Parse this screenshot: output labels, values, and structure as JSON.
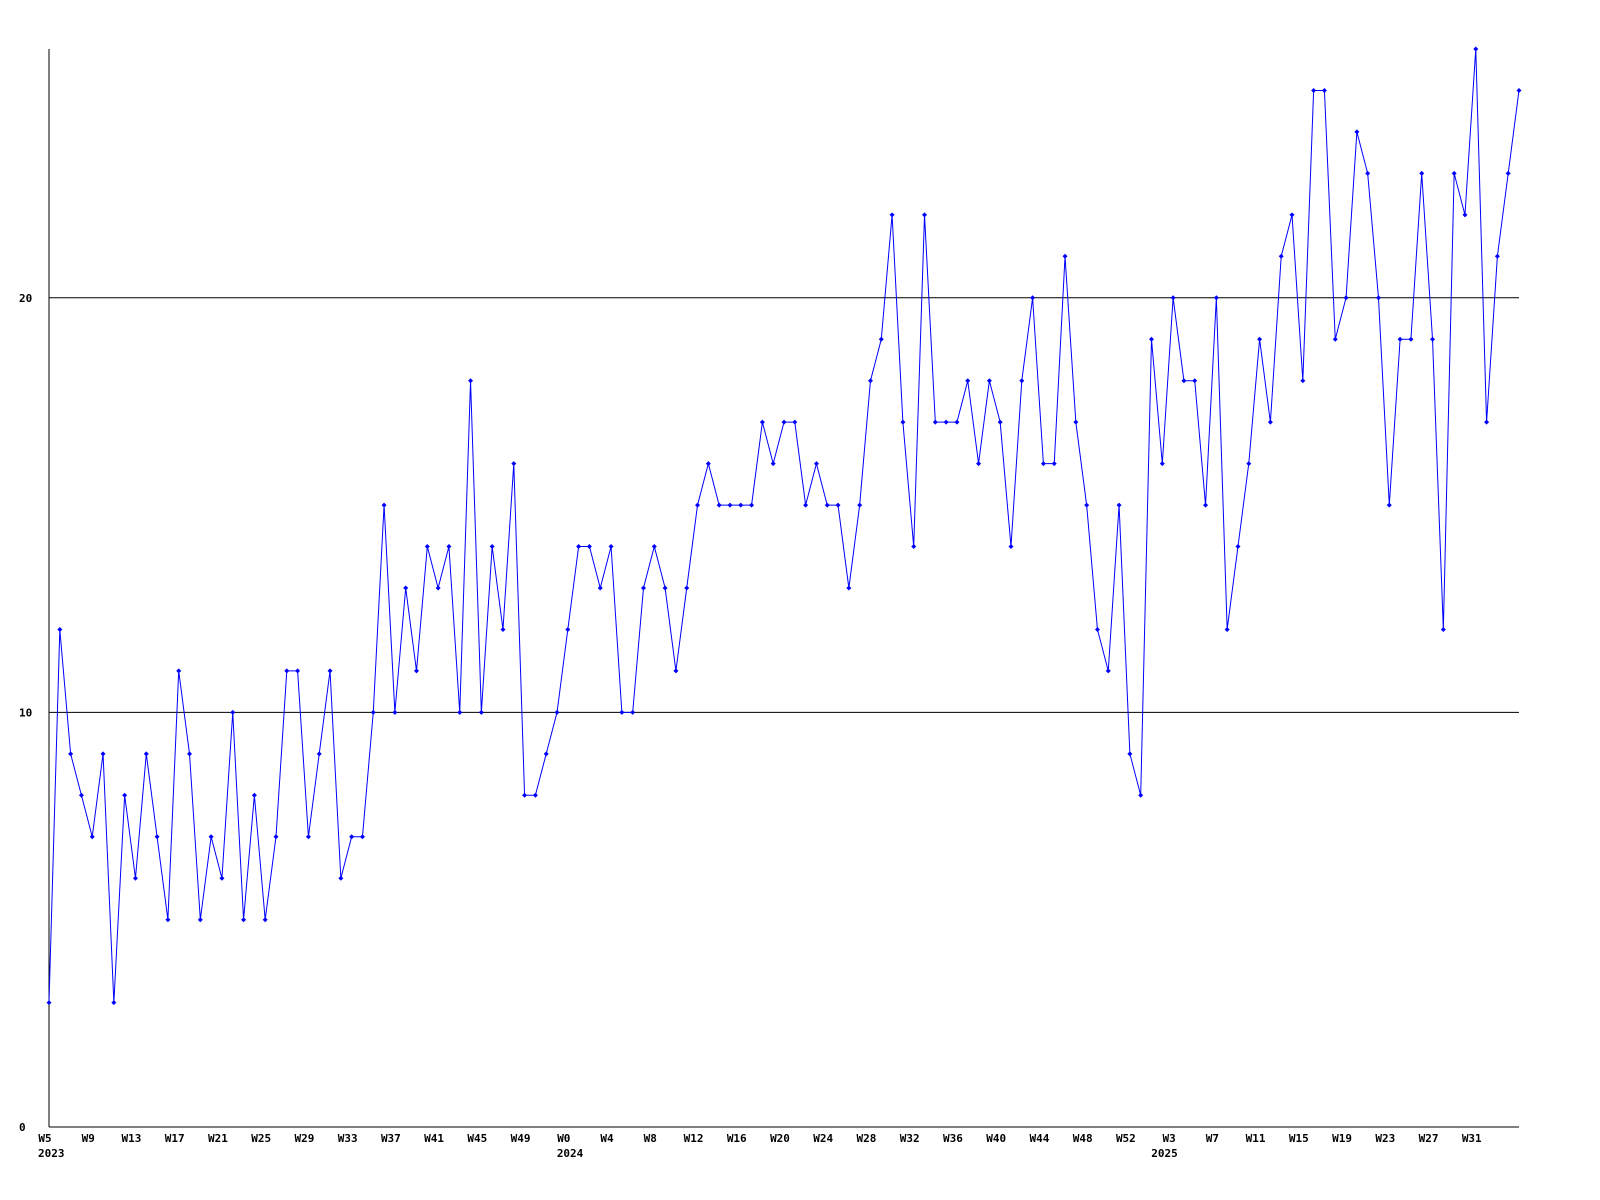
{
  "chart_data": {
    "type": "line",
    "categories": [
      "W5",
      null,
      null,
      null,
      "W9",
      null,
      null,
      null,
      "W13",
      null,
      null,
      null,
      "W17",
      null,
      null,
      null,
      "W21",
      null,
      null,
      null,
      "W25",
      null,
      null,
      null,
      "W29",
      null,
      null,
      null,
      "W33",
      null,
      null,
      null,
      "W37",
      null,
      null,
      null,
      "W41",
      null,
      null,
      null,
      "W45",
      null,
      null,
      null,
      "W49",
      null,
      null,
      null,
      "W0",
      null,
      null,
      null,
      "W4",
      null,
      null,
      null,
      "W8",
      null,
      null,
      null,
      "W12",
      null,
      null,
      null,
      "W16",
      null,
      null,
      null,
      "W20",
      null,
      null,
      null,
      "W24",
      null,
      null,
      null,
      "W28",
      null,
      null,
      null,
      "W32",
      null,
      null,
      null,
      "W36",
      null,
      null,
      null,
      "W40",
      null,
      null,
      null,
      "W44",
      null,
      null,
      null,
      "W48",
      null,
      null,
      null,
      "W52",
      null,
      null,
      null,
      "W3",
      null,
      null,
      null,
      "W7",
      null,
      null,
      null,
      "W11",
      null,
      null,
      null,
      "W15",
      null,
      null,
      null,
      "W19",
      null,
      null,
      null,
      "W23",
      null,
      null,
      null,
      "W27",
      null,
      null,
      null,
      "W31",
      null,
      null,
      null,
      null
    ],
    "category_groups": [
      "2023",
      null,
      null,
      null,
      null,
      null,
      null,
      null,
      null,
      null,
      null,
      null,
      null,
      null,
      null,
      null,
      null,
      null,
      null,
      null,
      null,
      null,
      null,
      null,
      null,
      null,
      null,
      null,
      null,
      null,
      null,
      null,
      null,
      null,
      null,
      null,
      null,
      null,
      null,
      null,
      null,
      null,
      null,
      null,
      null,
      null,
      null,
      null,
      "2024",
      null,
      null,
      null,
      null,
      null,
      null,
      null,
      null,
      null,
      null,
      null,
      null,
      null,
      null,
      null,
      null,
      null,
      null,
      null,
      null,
      null,
      null,
      null,
      null,
      null,
      null,
      null,
      null,
      null,
      null,
      null,
      null,
      null,
      null,
      null,
      null,
      null,
      null,
      null,
      null,
      null,
      null,
      null,
      null,
      null,
      null,
      null,
      null,
      null,
      null,
      null,
      null,
      null,
      null,
      "2025",
      null,
      null,
      null,
      null,
      null,
      null,
      null,
      null,
      null,
      null,
      null,
      null,
      null,
      null,
      null,
      null,
      null,
      null,
      null,
      null,
      null,
      null,
      null,
      null,
      null,
      null,
      null,
      null,
      null,
      null,
      null,
      null,
      null,
      null
    ],
    "series": [
      {
        "color": "#0000ff",
        "values": [
          3,
          12,
          9,
          8,
          7,
          9,
          3,
          8,
          6,
          9,
          7,
          5,
          11,
          9,
          5,
          7,
          6,
          10,
          5,
          8,
          5,
          7,
          11,
          11,
          7,
          9,
          11,
          6,
          7,
          7,
          10,
          15,
          10,
          13,
          11,
          14,
          13,
          14,
          10,
          18,
          10,
          14,
          12,
          16,
          8,
          8,
          9,
          10,
          12,
          14,
          14,
          13,
          14,
          10,
          10,
          13,
          14,
          13,
          11,
          13,
          15,
          16,
          15,
          15,
          15,
          15,
          17,
          16,
          17,
          17,
          15,
          16,
          15,
          15,
          13,
          15,
          18,
          19,
          22,
          17,
          14,
          22,
          17,
          17,
          17,
          18,
          16,
          18,
          17,
          14,
          18,
          20,
          16,
          16,
          21,
          17,
          15,
          12,
          11,
          15,
          9,
          8,
          19,
          16,
          20,
          18,
          18,
          15,
          20,
          12,
          14,
          16,
          19,
          17,
          21,
          22,
          18,
          25,
          25,
          19,
          20,
          24,
          23,
          20,
          15,
          19,
          19,
          23,
          19,
          12,
          23,
          22,
          26,
          17,
          21,
          23,
          25
        ]
      }
    ],
    "ylim": [
      0,
      26
    ],
    "yticks": [
      0,
      10,
      20
    ],
    "grid": true
  }
}
